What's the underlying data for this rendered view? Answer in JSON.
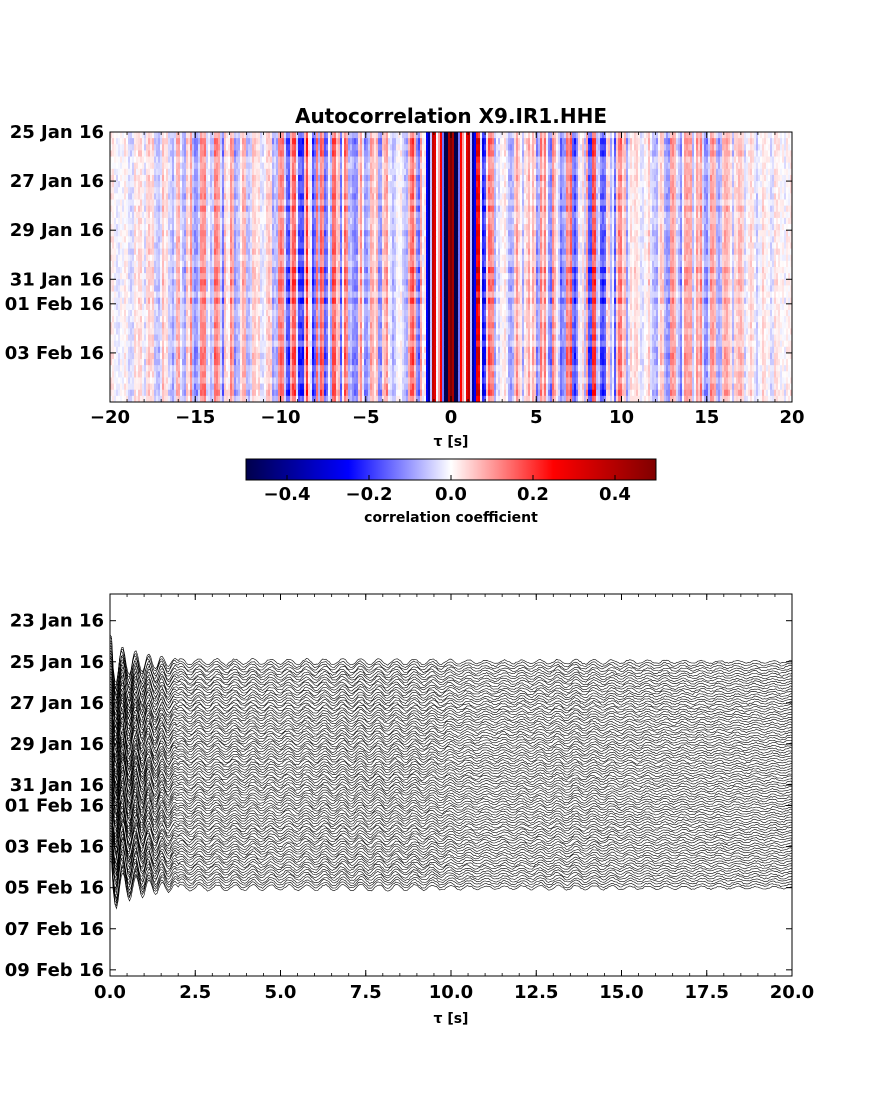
{
  "chart_data": [
    {
      "type": "heatmap",
      "title": "Autocorrelation X9.IR1.HHE",
      "xlabel": "τ [s]",
      "ylabel": "",
      "xlim": [
        -20,
        20
      ],
      "x_ticks": [
        "−20",
        "−15",
        "−10",
        "−5",
        "0",
        "5",
        "10",
        "15",
        "20"
      ],
      "y_ticks": [
        "25 Jan 16",
        "27 Jan 16",
        "29 Jan 16",
        "31 Jan 16",
        "01 Feb 16",
        "03 Feb 16"
      ],
      "y_tick_day_index": [
        0,
        2,
        4,
        6,
        7,
        9
      ],
      "ylim_day_index": [
        0,
        11
      ],
      "colormap": "seismic",
      "colorbar": {
        "label": "correlation coefficient",
        "range": [
          -0.5,
          0.5
        ],
        "ticks": [
          "−0.4",
          "−0.2",
          "0.0",
          "0.2",
          "0.4"
        ],
        "tick_values": [
          -0.4,
          -0.2,
          0.0,
          0.2,
          0.4
        ],
        "stops": [
          "#00004c",
          "#0000ff",
          "#ffffff",
          "#ff0000",
          "#800000"
        ]
      },
      "profile_vs_tau": [
        {
          "tau": -20,
          "r": 0.02
        },
        {
          "tau": -17.5,
          "r": 0.06
        },
        {
          "tau": -15.5,
          "r": 0.1
        },
        {
          "tau": -13.5,
          "r": 0.14
        },
        {
          "tau": -11,
          "r": 0.03
        },
        {
          "tau": -9.5,
          "r": 0.18
        },
        {
          "tau": -8,
          "r": 0.2
        },
        {
          "tau": -5.5,
          "r": 0.12
        },
        {
          "tau": -3.5,
          "r": 0.1
        },
        {
          "tau": -1,
          "r": -0.42
        },
        {
          "tau": -0.5,
          "r": 0.45
        },
        {
          "tau": 0,
          "r": 1.0
        },
        {
          "tau": 0.5,
          "r": 0.45
        },
        {
          "tau": 1,
          "r": -0.42
        },
        {
          "tau": 3.5,
          "r": 0.1
        },
        {
          "tau": 5.5,
          "r": 0.12
        },
        {
          "tau": 8,
          "r": 0.2
        },
        {
          "tau": 9.5,
          "r": 0.18
        },
        {
          "tau": 11,
          "r": 0.03
        },
        {
          "tau": 13.5,
          "r": 0.14
        },
        {
          "tau": 15.5,
          "r": 0.1
        },
        {
          "tau": 17.5,
          "r": 0.06
        },
        {
          "tau": 20,
          "r": 0.02
        }
      ]
    },
    {
      "type": "line",
      "title": "",
      "xlabel": "τ [s]",
      "ylabel": "",
      "xlim": [
        0,
        20
      ],
      "x_ticks": [
        "0.0",
        "2.5",
        "5.0",
        "7.5",
        "10.0",
        "12.5",
        "15.0",
        "17.5",
        "20.0"
      ],
      "y_ticks": [
        "23 Jan 16",
        "25 Jan 16",
        "27 Jan 16",
        "29 Jan 16",
        "31 Jan 16",
        "01 Feb 16",
        "03 Feb 16",
        "05 Feb 16",
        "07 Feb 16",
        "09 Feb 16"
      ],
      "y_tick_day_index": [
        -2,
        0,
        2,
        4,
        6,
        7,
        9,
        11,
        13,
        15
      ],
      "ylim_day_index": [
        -3.3,
        15.3
      ],
      "trace_start_day": 0,
      "trace_end_day": 11,
      "trace_spacing_days": 0.125,
      "line_color": "#000000",
      "amplitude_envelope": [
        {
          "tau": 0.0,
          "a": 1.0
        },
        {
          "tau": 0.4,
          "a": 0.55
        },
        {
          "tau": 1.2,
          "a": 0.28
        },
        {
          "tau": 2.0,
          "a": 0.12
        },
        {
          "tau": 3.5,
          "a": 0.11
        },
        {
          "tau": 5.0,
          "a": 0.1
        },
        {
          "tau": 7.5,
          "a": 0.12
        },
        {
          "tau": 9.5,
          "a": 0.1
        },
        {
          "tau": 11.0,
          "a": 0.06
        },
        {
          "tau": 13.5,
          "a": 0.09
        },
        {
          "tau": 16.0,
          "a": 0.06
        },
        {
          "tau": 20.0,
          "a": 0.04
        }
      ]
    }
  ]
}
